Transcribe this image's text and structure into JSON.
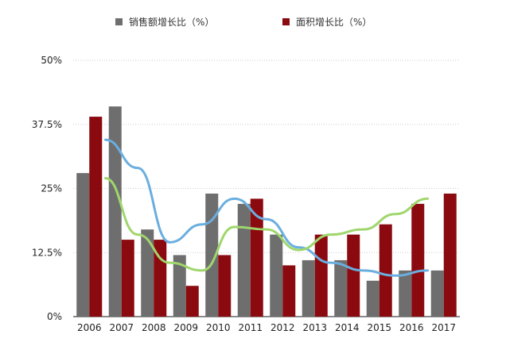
{
  "chart_data": {
    "type": "bar",
    "categories": [
      "2006",
      "2007",
      "2008",
      "2009",
      "2010",
      "2011",
      "2012",
      "2013",
      "2014",
      "2015",
      "2016",
      "2017"
    ],
    "series": [
      {
        "name": "销售额增长比（%）",
        "color": "#6e6e6e",
        "values": [
          28,
          41,
          17,
          12,
          24,
          22,
          16,
          11,
          11,
          7,
          9,
          9
        ]
      },
      {
        "name": "面积增长比（%）",
        "color": "#8b0a10",
        "values": [
          39,
          15,
          15,
          6,
          12,
          23,
          10,
          16,
          16,
          18,
          22,
          24
        ]
      }
    ],
    "lines": [
      {
        "color": "#6aaee0",
        "values": [
          34.5,
          29,
          14.5,
          18,
          23,
          19,
          13.5,
          10.5,
          9,
          8,
          9,
          null
        ]
      },
      {
        "color": "#9fd66c",
        "values": [
          27,
          16,
          10.5,
          9,
          17.5,
          17,
          13,
          16,
          17,
          20,
          23,
          null
        ]
      }
    ],
    "yticks": [
      "0%",
      "12.5%",
      "25%",
      "37.5%",
      "50%"
    ],
    "ylim": [
      0,
      50
    ],
    "grid": true,
    "legend_position": "top"
  }
}
